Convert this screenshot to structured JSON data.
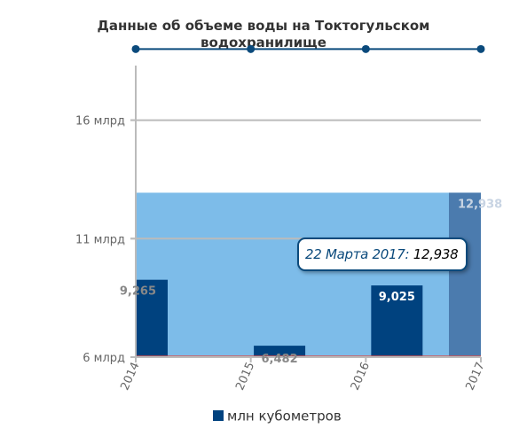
{
  "chart_data": {
    "type": "bar",
    "title_lines": [
      "Данные об объеме воды на Токтогульском",
      "водохранилище"
    ],
    "y_ticks": [
      {
        "value": 6,
        "label": "6 млрд"
      },
      {
        "value": 11,
        "label": "11 млрд"
      },
      {
        "value": 16,
        "label": "16 млрд"
      }
    ],
    "ylim": [
      6,
      19.2
    ],
    "x_ticks": [
      "2014",
      "2015",
      "2016",
      "2017"
    ],
    "xlim": [
      2014,
      2017
    ],
    "series": [
      {
        "name": "млн кубометров",
        "color": "#00427f",
        "points": [
          {
            "x": 2014,
            "value": 9.265,
            "label": "9,265"
          },
          {
            "x": 2015.25,
            "value": 6.482,
            "label": "6,482"
          },
          {
            "x": 2016.27,
            "value": 9.025,
            "label": "9,025"
          },
          {
            "x": 2017,
            "value": 12.938,
            "label": "12,938"
          }
        ]
      }
    ],
    "highlight_band": {
      "value": 12.938,
      "color": "#7dbce9"
    },
    "top_line": {
      "value": 19,
      "x": [
        2014,
        2015,
        2016,
        2017
      ],
      "color": "#0b4a7c"
    },
    "tooltip": {
      "date": "22 Марта 2017:",
      "value": "12,938"
    },
    "colors": {
      "grid": "#bbbbbb",
      "axis": "#bbbbbb",
      "baseline": "#d9534f",
      "highlight_bar": "#4b7bae"
    }
  }
}
